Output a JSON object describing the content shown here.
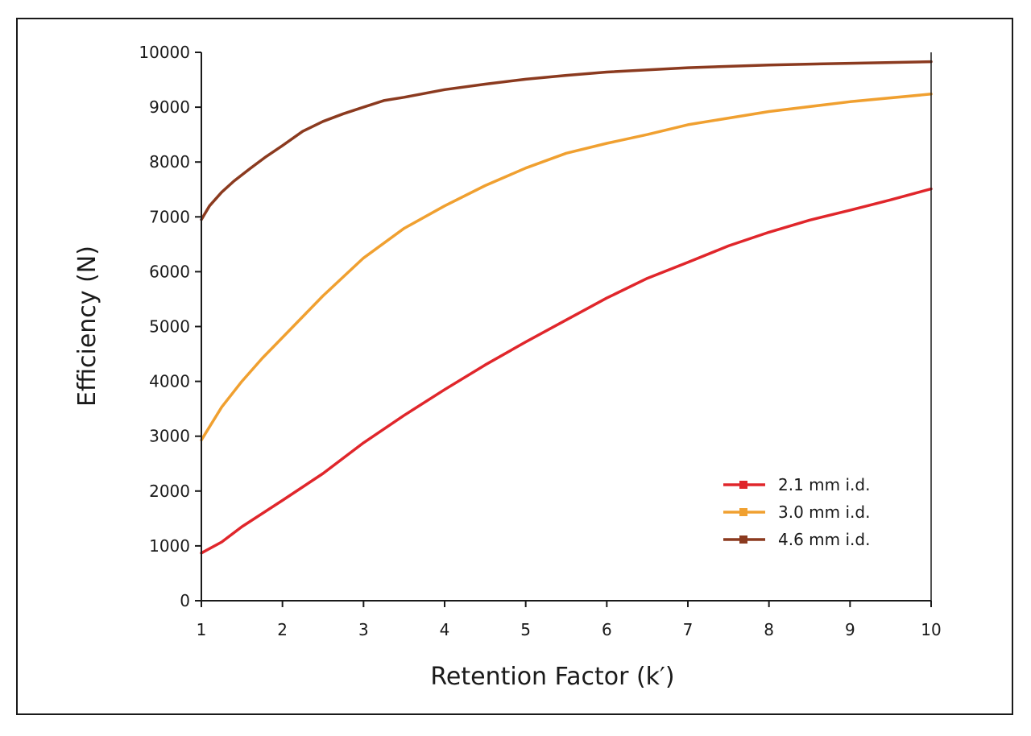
{
  "chart_data": {
    "type": "line",
    "title": "",
    "xlabel": "Retention Factor (k′)",
    "ylabel": "Efficiency (N)",
    "xlim": [
      1,
      10
    ],
    "ylim": [
      0,
      10000
    ],
    "x_ticks": [
      "1",
      "2",
      "3",
      "4",
      "5",
      "6",
      "7",
      "8",
      "9",
      "10"
    ],
    "y_ticks": [
      "0",
      "1000",
      "2000",
      "3000",
      "4000",
      "5000",
      "6000",
      "7000",
      "8000",
      "9000",
      "10000"
    ],
    "legend_position": "bottom-right",
    "grid": false,
    "series": [
      {
        "name": "2.1 mm i.d.",
        "color": "#e0262b",
        "x": [
          1,
          1.25,
          1.5,
          2,
          2.5,
          3,
          3.5,
          4,
          4.5,
          5,
          5.5,
          6,
          6.5,
          7,
          7.5,
          8,
          8.5,
          9,
          9.5,
          10
        ],
        "y": [
          870,
          1070,
          1350,
          1830,
          2320,
          2880,
          3380,
          3850,
          4300,
          4720,
          5120,
          5520,
          5880,
          6170,
          6470,
          6720,
          6940,
          7120,
          7310,
          7510
        ]
      },
      {
        "name": "3.0 mm i.d.",
        "color": "#f0a030",
        "x": [
          1,
          1.25,
          1.5,
          1.75,
          2,
          2.5,
          3,
          3.5,
          4,
          4.5,
          5,
          5.5,
          6,
          6.5,
          7,
          8,
          9,
          10
        ],
        "y": [
          2930,
          3530,
          4000,
          4420,
          4800,
          5560,
          6250,
          6790,
          7200,
          7570,
          7890,
          8160,
          8340,
          8500,
          8680,
          8920,
          9100,
          9240
        ]
      },
      {
        "name": "4.6 mm i.d.",
        "color": "#8b3a1f",
        "x": [
          1,
          1.1,
          1.25,
          1.4,
          1.6,
          1.8,
          2,
          2.25,
          2.5,
          2.75,
          3,
          3.25,
          3.5,
          4,
          4.5,
          5,
          5.5,
          6,
          7,
          8,
          9,
          10
        ],
        "y": [
          6950,
          7200,
          7450,
          7650,
          7880,
          8100,
          8300,
          8560,
          8740,
          8880,
          9000,
          9120,
          9180,
          9320,
          9420,
          9510,
          9580,
          9640,
          9720,
          9770,
          9800,
          9830
        ]
      }
    ]
  }
}
